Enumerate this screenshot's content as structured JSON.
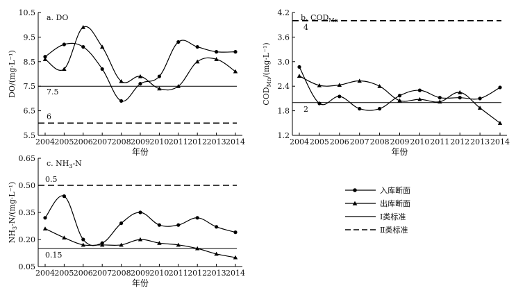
{
  "chart_data": [
    {
      "type": "line",
      "title": "a. DO",
      "ylabel": "DO/(mg·L⁻¹)",
      "xlabel": "年份",
      "categories": [
        "2004",
        "2005",
        "2006",
        "2007",
        "2008",
        "2009",
        "2010",
        "2011",
        "2012",
        "2013",
        "2014"
      ],
      "ylim": [
        5.5,
        10.5
      ],
      "yticks": [
        "5.5",
        "6.5",
        "7.5",
        "8.5",
        "9.5",
        "10.5"
      ],
      "series": [
        {
          "name": "入库断面",
          "marker": "circle",
          "values": [
            8.7,
            9.2,
            9.1,
            8.2,
            6.9,
            7.6,
            7.9,
            9.3,
            9.1,
            8.9,
            8.9
          ]
        },
        {
          "name": "出库断面",
          "marker": "triangle",
          "values": [
            8.6,
            8.2,
            9.9,
            9.1,
            7.7,
            7.9,
            7.4,
            7.5,
            8.5,
            8.6,
            8.1
          ]
        }
      ],
      "reference_lines": [
        {
          "name": "Ⅰ类标准",
          "value": 7.5,
          "label": "7.5",
          "style": "solid"
        },
        {
          "name": "Ⅱ类标准",
          "value": 6,
          "label": "6",
          "style": "dashed"
        }
      ]
    },
    {
      "type": "line",
      "title": "b. COD",
      "title_sub": "Mn",
      "ylabel": "COD",
      "ylabel_sub": "Mn",
      "ylabel_tail": "/(mg·L⁻¹)",
      "xlabel": "年份",
      "categories": [
        "2004",
        "2005",
        "2006",
        "2007",
        "2008",
        "2009",
        "2010",
        "2011",
        "2012",
        "2013",
        "2014"
      ],
      "ylim": [
        1.2,
        4.2
      ],
      "yticks": [
        "1.2",
        "1.8",
        "2.4",
        "3.0",
        "3.6",
        "4.2"
      ],
      "series": [
        {
          "name": "入库断面",
          "marker": "circle",
          "values": [
            2.87,
            1.98,
            2.15,
            1.85,
            1.85,
            2.17,
            2.3,
            2.12,
            2.12,
            2.1,
            2.37
          ]
        },
        {
          "name": "出库断面",
          "marker": "triangle",
          "values": [
            2.65,
            2.42,
            2.43,
            2.53,
            2.4,
            2.05,
            2.08,
            2.02,
            2.25,
            1.87,
            1.5
          ]
        }
      ],
      "reference_lines": [
        {
          "name": "Ⅰ类标准",
          "value": 2,
          "label": "2",
          "style": "solid"
        },
        {
          "name": "Ⅱ类标准",
          "value": 4,
          "label": "4",
          "style": "dashed"
        }
      ]
    },
    {
      "type": "line",
      "title": "c. NH",
      "title_sub": "3",
      "title_tail": "-N",
      "ylabel": "NH",
      "ylabel_sub": "3",
      "ylabel_tail": "-N/(mg·L⁻¹)",
      "xlabel": "年份",
      "categories": [
        "2004",
        "2005",
        "2006",
        "2007",
        "2008",
        "2009",
        "2010",
        "2011",
        "2012",
        "2013",
        "2014"
      ],
      "ylim": [
        0.05,
        0.65
      ],
      "yticks": [
        "0.05",
        "0.20",
        "0.35",
        "0.50",
        "0.65"
      ],
      "series": [
        {
          "name": "入库断面",
          "marker": "circle",
          "values": [
            0.32,
            0.44,
            0.2,
            0.18,
            0.29,
            0.35,
            0.28,
            0.28,
            0.32,
            0.27,
            0.24
          ]
        },
        {
          "name": "出库断面",
          "marker": "triangle",
          "values": [
            0.26,
            0.21,
            0.17,
            0.17,
            0.17,
            0.2,
            0.18,
            0.17,
            0.15,
            0.12,
            0.1
          ]
        }
      ],
      "reference_lines": [
        {
          "name": "Ⅰ类标准",
          "value": 0.15,
          "label": "0.15",
          "style": "solid"
        },
        {
          "name": "Ⅱ类标准",
          "value": 0.5,
          "label": "0.5",
          "style": "dashed"
        }
      ]
    }
  ],
  "legend": [
    {
      "label": "入库断面",
      "kind": "circle-line"
    },
    {
      "label": "出库断面",
      "kind": "triangle-line"
    },
    {
      "label": "Ⅰ类标准",
      "kind": "solid-line"
    },
    {
      "label": "Ⅱ类标准",
      "kind": "dashed-line"
    }
  ]
}
